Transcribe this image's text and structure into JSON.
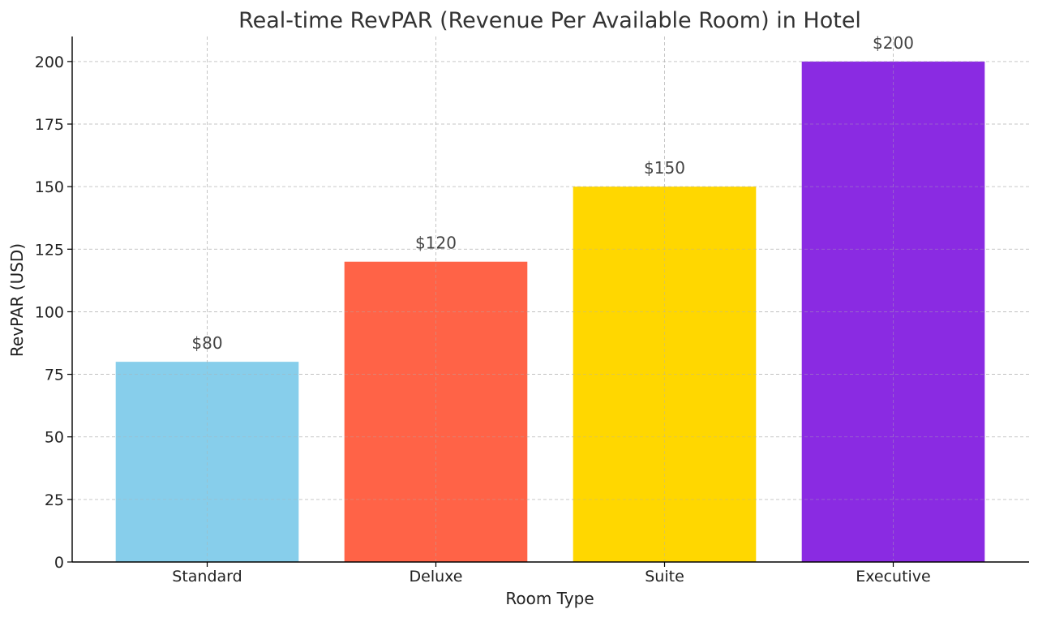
{
  "chart_data": {
    "type": "bar",
    "title": "Real-time RevPAR (Revenue Per Available Room) in Hotel",
    "xlabel": "Room Type",
    "ylabel": "RevPAR (USD)",
    "categories": [
      "Standard",
      "Deluxe",
      "Suite",
      "Executive"
    ],
    "values": [
      80,
      120,
      150,
      200
    ],
    "data_labels": [
      "$80",
      "$120",
      "$150",
      "$200"
    ],
    "colors": [
      "#87CEEB",
      "#FF6347",
      "#FFD700",
      "#8A2BE2"
    ],
    "ylim": [
      0,
      210
    ],
    "yticks": [
      0,
      25,
      50,
      75,
      100,
      125,
      150,
      175,
      200
    ],
    "grid": true
  }
}
